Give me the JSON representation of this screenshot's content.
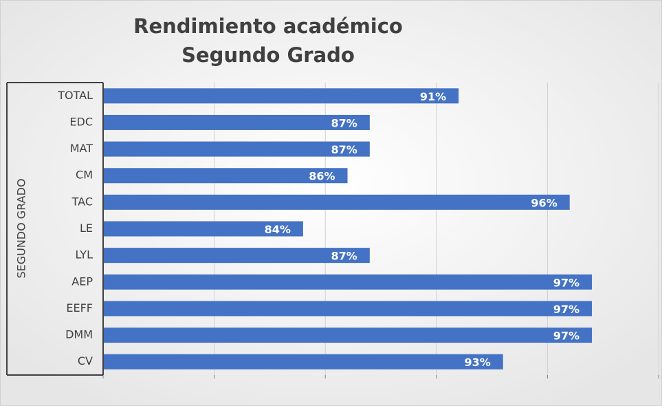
{
  "chart_data": {
    "type": "bar",
    "orientation": "horizontal",
    "title": [
      "Rendimiento académico",
      "Segundo Grado"
    ],
    "group_label": "SEGUNDO GRADO",
    "categories": [
      "TOTAL",
      "EDC",
      "MAT",
      "CM",
      "TAC",
      "LE",
      "LYL",
      "AEP",
      "EEFF",
      "DMM",
      "CV"
    ],
    "values": [
      91,
      87,
      87,
      86,
      96,
      84,
      87,
      97,
      97,
      97,
      93
    ],
    "value_labels": [
      "91%",
      "87%",
      "87%",
      "86%",
      "96%",
      "84%",
      "87%",
      "97%",
      "97%",
      "97%",
      "93%"
    ],
    "color": "#4472c4",
    "xlim": [
      75,
      100
    ],
    "xticks": [
      75,
      80,
      85,
      90,
      95,
      100
    ],
    "grid": true
  }
}
